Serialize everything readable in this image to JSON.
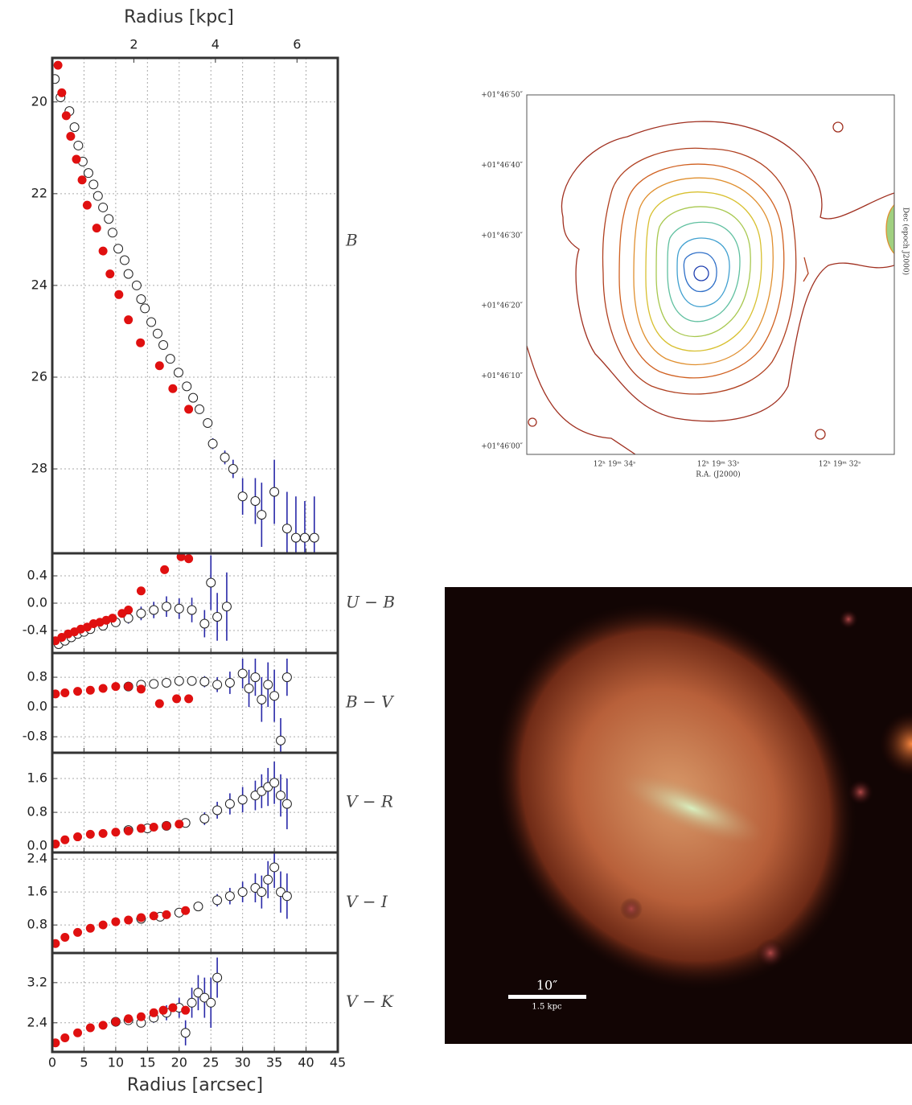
{
  "chart_data": [
    {
      "type": "scatter",
      "label": "B",
      "xlim": [
        0,
        45
      ],
      "xticks": [
        0,
        5,
        10,
        15,
        20,
        25,
        30,
        35,
        40,
        45
      ],
      "ylim": [
        29.84,
        19.04
      ],
      "yticks": [
        20,
        22,
        24,
        26,
        28
      ],
      "grid": true,
      "x2label": "Radius [kpc]",
      "x2lim": [
        0,
        7
      ],
      "x2ticks": [
        2,
        4,
        6
      ],
      "series": [
        {
          "color": "#e01010",
          "marker": "filled",
          "x": [
            0.9,
            1.5,
            2.2,
            2.9,
            3.8,
            4.7,
            5.5,
            7.0,
            8.0,
            9.1,
            10.5,
            12.0,
            13.9,
            16.9,
            19.0,
            21.5
          ],
          "values": [
            19.2,
            19.8,
            20.3,
            20.75,
            21.25,
            21.7,
            22.25,
            22.75,
            23.25,
            23.75,
            24.2,
            24.75,
            25.25,
            25.75,
            26.25,
            26.7
          ]
        },
        {
          "color": "#2828a8",
          "marker": "open",
          "x": [
            0.4,
            1.3,
            2.7,
            3.5,
            4.1,
            4.8,
            5.7,
            6.5,
            7.2,
            8,
            8.9,
            9.5,
            10.4,
            11.4,
            12,
            13.3,
            14,
            14.6,
            15.6,
            16.6,
            17.5,
            18.6,
            19.9,
            21.2,
            22.2,
            23.2,
            24.5,
            25.3,
            27.2,
            28.5,
            30,
            32,
            33,
            35,
            37,
            38.4,
            39.8,
            41.3
          ],
          "values": [
            19.5,
            19.9,
            20.2,
            20.55,
            20.95,
            21.3,
            21.55,
            21.8,
            22.05,
            22.3,
            22.55,
            22.85,
            23.2,
            23.45,
            23.75,
            24,
            24.3,
            24.5,
            24.8,
            25.05,
            25.3,
            25.6,
            25.9,
            26.2,
            26.45,
            26.7,
            27,
            27.45,
            27.75,
            28,
            28.6,
            28.7,
            29,
            28.5,
            29.3,
            29.5,
            29.5,
            29.5
          ],
          "errors": [
            0.02,
            0.02,
            0.02,
            0.02,
            0.02,
            0.02,
            0.02,
            0.02,
            0.02,
            0.02,
            0.02,
            0.02,
            0.02,
            0.02,
            0.02,
            0.03,
            0.03,
            0.03,
            0.03,
            0.04,
            0.04,
            0.05,
            0.05,
            0.06,
            0.07,
            0.08,
            0.1,
            0.12,
            0.15,
            0.2,
            0.4,
            0.5,
            0.7,
            0.7,
            0.8,
            0.9,
            0.8,
            0.9
          ]
        }
      ]
    },
    {
      "type": "scatter",
      "label": "U − B",
      "xlim": [
        0,
        45
      ],
      "xticks": [
        0,
        5,
        10,
        15,
        20,
        25,
        30,
        35,
        40,
        45
      ],
      "ylim": [
        -0.73,
        0.73
      ],
      "yticks": [
        -0.4,
        {
          "value": 0,
          "label": "0.0"
        },
        0.4
      ],
      "grid": true,
      "series": [
        {
          "color": "#e01010",
          "marker": "filled",
          "x": [
            0.5,
            1.5,
            2.5,
            3.5,
            4.5,
            5.5,
            6.5,
            7.5,
            8.5,
            9.5,
            11,
            12,
            14,
            17.7,
            20.3,
            21.5
          ],
          "values": [
            -0.55,
            -0.5,
            -0.45,
            -0.42,
            -0.38,
            -0.35,
            -0.3,
            -0.28,
            -0.25,
            -0.22,
            -0.15,
            -0.1,
            0.18,
            0.49,
            0.68,
            0.65
          ]
        },
        {
          "color": "#2828a8",
          "marker": "open",
          "x": [
            1,
            2,
            3,
            4,
            5,
            6,
            8,
            10,
            12,
            14,
            16,
            18,
            20,
            22,
            24,
            25,
            26,
            27.5
          ],
          "values": [
            -0.6,
            -0.55,
            -0.5,
            -0.45,
            -0.42,
            -0.38,
            -0.33,
            -0.28,
            -0.22,
            -0.15,
            -0.1,
            -0.05,
            -0.08,
            -0.1,
            -0.3,
            0.3,
            -0.2,
            -0.05
          ],
          "errors": [
            0.05,
            0.05,
            0.05,
            0.05,
            0.05,
            0.05,
            0.05,
            0.06,
            0.08,
            0.1,
            0.12,
            0.15,
            0.15,
            0.18,
            0.2,
            0.4,
            0.35,
            0.5
          ]
        }
      ]
    },
    {
      "type": "scatter",
      "label": "B − V",
      "xlim": [
        0,
        45
      ],
      "xticks": [
        0,
        5,
        10,
        15,
        20,
        25,
        30,
        35,
        40,
        45
      ],
      "ylim": [
        -1.23,
        1.45
      ],
      "yticks": [
        -0.8,
        {
          "value": 0,
          "label": "0.0"
        },
        0.8
      ],
      "grid": true,
      "series": [
        {
          "color": "#e01010",
          "marker": "filled",
          "x": [
            0.5,
            2,
            4,
            6,
            8,
            10,
            12,
            14,
            16.9,
            19.6,
            21.5
          ],
          "values": [
            0.35,
            0.38,
            0.42,
            0.45,
            0.5,
            0.55,
            0.55,
            0.48,
            0.09,
            0.22,
            0.22
          ]
        },
        {
          "color": "#2828a8",
          "marker": "open",
          "x": [
            12,
            14,
            16,
            18,
            20,
            22,
            24,
            26,
            28,
            30,
            31,
            32,
            33,
            34,
            35,
            36,
            37
          ],
          "values": [
            0.55,
            0.6,
            0.62,
            0.65,
            0.7,
            0.7,
            0.68,
            0.6,
            0.65,
            0.9,
            0.5,
            0.8,
            0.2,
            0.6,
            0.3,
            -0.9,
            0.8
          ],
          "errors": [
            0.05,
            0.06,
            0.08,
            0.1,
            0.1,
            0.12,
            0.15,
            0.2,
            0.3,
            0.4,
            0.5,
            0.5,
            0.6,
            0.6,
            0.7,
            0.6,
            0.5
          ]
        }
      ]
    },
    {
      "type": "scatter",
      "label": "V − R",
      "xlim": [
        0,
        45
      ],
      "xticks": [
        0,
        5,
        10,
        15,
        20,
        25,
        30,
        35,
        40,
        45
      ],
      "ylim": [
        -0.15,
        2.21
      ],
      "yticks": [
        {
          "value": 0,
          "label": "0.0"
        },
        0.8,
        1.6
      ],
      "grid": true,
      "series": [
        {
          "color": "#e01010",
          "marker": "filled",
          "x": [
            0.5,
            2,
            4,
            6,
            8,
            10,
            12,
            14,
            16,
            18,
            20
          ],
          "values": [
            0.05,
            0.15,
            0.22,
            0.28,
            0.3,
            0.33,
            0.36,
            0.42,
            0.45,
            0.48,
            0.52
          ]
        },
        {
          "color": "#2828a8",
          "marker": "open",
          "x": [
            12,
            15,
            18,
            21,
            24,
            26,
            28,
            30,
            32,
            33,
            34,
            35,
            36,
            37
          ],
          "values": [
            0.38,
            0.42,
            0.48,
            0.55,
            0.65,
            0.85,
            1.0,
            1.1,
            1.2,
            1.3,
            1.4,
            1.5,
            1.2,
            1.0
          ],
          "errors": [
            0.03,
            0.05,
            0.07,
            0.1,
            0.15,
            0.2,
            0.25,
            0.3,
            0.35,
            0.4,
            0.45,
            0.5,
            0.5,
            0.6
          ]
        }
      ]
    },
    {
      "type": "scatter",
      "label": "V − I",
      "xlim": [
        0,
        45
      ],
      "xticks": [
        0,
        5,
        10,
        15,
        20,
        25,
        30,
        35,
        40,
        45
      ],
      "ylim": [
        0.12,
        2.56
      ],
      "yticks": [
        0.8,
        1.6,
        2.4
      ],
      "grid": true,
      "series": [
        {
          "color": "#e01010",
          "marker": "filled",
          "x": [
            0.5,
            2,
            4,
            6,
            8,
            10,
            12,
            14,
            16,
            18,
            21
          ],
          "values": [
            0.35,
            0.5,
            0.62,
            0.72,
            0.8,
            0.88,
            0.92,
            0.98,
            1.02,
            1.05,
            1.15
          ]
        },
        {
          "color": "#2828a8",
          "marker": "open",
          "x": [
            14,
            17,
            20,
            23,
            26,
            28,
            30,
            32,
            33,
            34,
            35,
            36,
            37
          ],
          "values": [
            0.95,
            1.0,
            1.1,
            1.25,
            1.4,
            1.5,
            1.6,
            1.7,
            1.6,
            1.9,
            2.2,
            1.6,
            1.5
          ],
          "errors": [
            0.04,
            0.06,
            0.08,
            0.1,
            0.15,
            0.2,
            0.25,
            0.35,
            0.4,
            0.45,
            0.5,
            0.5,
            0.55
          ]
        }
      ]
    },
    {
      "type": "scatter",
      "label": "V − K",
      "xlim": [
        0,
        45
      ],
      "xticks": [
        0,
        5,
        10,
        15,
        20,
        25,
        30,
        35,
        40,
        45
      ],
      "ylim": [
        1.82,
        3.79
      ],
      "yticks": [
        2.4,
        3.2
      ],
      "grid": true,
      "xlabel": "Radius [arcsec]",
      "series": [
        {
          "color": "#e01010",
          "marker": "filled",
          "x": [
            0.5,
            2,
            4,
            6,
            8,
            10,
            12,
            14,
            16,
            17.5,
            19,
            21
          ],
          "values": [
            2.0,
            2.1,
            2.2,
            2.3,
            2.35,
            2.42,
            2.48,
            2.52,
            2.6,
            2.65,
            2.7,
            2.65
          ]
        },
        {
          "color": "#2828a8",
          "marker": "open",
          "x": [
            10,
            12,
            14,
            16,
            18,
            20,
            21,
            22,
            23,
            24,
            25,
            26
          ],
          "values": [
            2.42,
            2.45,
            2.4,
            2.5,
            2.6,
            2.7,
            2.2,
            2.8,
            3.0,
            2.9,
            2.8,
            3.3
          ],
          "errors": [
            0.05,
            0.06,
            0.08,
            0.1,
            0.15,
            0.2,
            0.25,
            0.3,
            0.35,
            0.4,
            0.5,
            0.4
          ]
        }
      ]
    }
  ],
  "contour_map": {
    "xlabel": "R.A. (J2000)",
    "ylabel": "Dec (epoch J2000)",
    "yticklabels": [
      "+01°46′50″",
      "+01°46′40″",
      "+01°46′30″",
      "+01°46′20″",
      "+01°46′10″",
      "+01°46′00″"
    ],
    "xticklabels": [
      "12ʰ 19ᵐ 34ˢ",
      "12ʰ 19ᵐ 33ˢ",
      "12ʰ 19ᵐ 32ˢ"
    ]
  },
  "image": {
    "scale_top": "10″",
    "scale_bottom": "1.5 kpc"
  }
}
